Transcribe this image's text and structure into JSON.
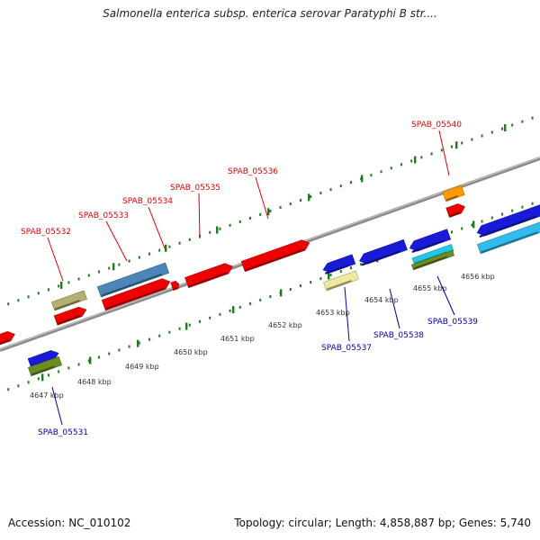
{
  "title": "Salmonella enterica subsp. enterica serovar Paratyphi B str....",
  "accession": "Accession: NC_010102",
  "summary": "Topology: circular; Length: 4,858,887 bp; Genes: 5,740",
  "colors": {
    "backbone": "#8a8a8a",
    "tick": "#1f7a1f",
    "forward_label": "#dd0000",
    "reverse_label": "#0000aa",
    "red": "#ee0000",
    "blue": "#1a1ad9",
    "steelblue": "#4a86b8",
    "olive": "#b4b070",
    "olivegreen": "#6b8e23",
    "orange": "#ff9900",
    "paleyellow": "#eee8a0",
    "cyan": "#22c8e8",
    "skyblue": "#33bbee"
  },
  "ticks": [
    {
      "label": "4647 kbp"
    },
    {
      "label": "4648 kbp"
    },
    {
      "label": "4649 kbp"
    },
    {
      "label": "4650 kbp"
    },
    {
      "label": "4651 kbp"
    },
    {
      "label": "4652 kbp"
    },
    {
      "label": "4653 kbp"
    },
    {
      "label": "4654 kbp"
    },
    {
      "label": "4655 kbp"
    },
    {
      "label": "4656 kbp"
    }
  ],
  "genes": [
    {
      "label": "SPAB_05531",
      "strand": "reverse"
    },
    {
      "label": "SPAB_05532",
      "strand": "forward"
    },
    {
      "label": "SPAB_05533",
      "strand": "forward"
    },
    {
      "label": "SPAB_05534",
      "strand": "forward"
    },
    {
      "label": "SPAB_05535",
      "strand": "forward"
    },
    {
      "label": "SPAB_05536",
      "strand": "forward"
    },
    {
      "label": "SPAB_05537",
      "strand": "reverse"
    },
    {
      "label": "SPAB_05538",
      "strand": "reverse"
    },
    {
      "label": "SPAB_05539",
      "strand": "reverse"
    },
    {
      "label": "SPAB_05540",
      "strand": "forward"
    }
  ]
}
